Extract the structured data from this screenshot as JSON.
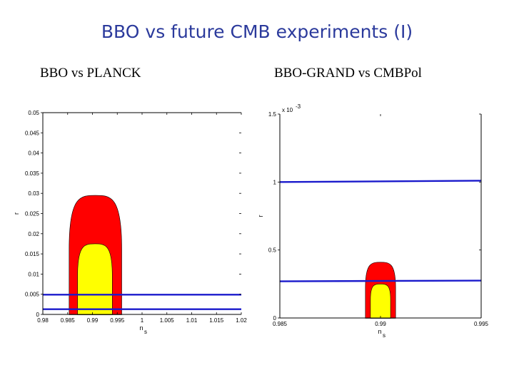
{
  "slide_title": "BBO vs future CMB experiments (I)",
  "chart_data": [
    {
      "type": "area",
      "title": "BBO vs PLANCK",
      "xlabel": "n",
      "xlabel_sub": "s",
      "ylabel": "r",
      "xlim": [
        0.98,
        1.02
      ],
      "ylim": [
        0,
        0.05
      ],
      "xticks": [
        0.98,
        0.985,
        0.99,
        0.995,
        1,
        1.005,
        1.01,
        1.015,
        1.02
      ],
      "xtick_labels": [
        "0.98",
        "0.985",
        "0.99",
        "0.995",
        "1",
        "1.005",
        "1.01",
        "1.015",
        "1.02"
      ],
      "yticks": [
        0,
        0.005,
        0.01,
        0.015,
        0.02,
        0.025,
        0.03,
        0.035,
        0.04,
        0.045,
        0.05
      ],
      "ytick_labels": [
        "0",
        "0.005",
        "0.01",
        "0.015",
        "0.02",
        "0.025",
        "0.03",
        "0.035",
        "0.04",
        "0.045",
        "0.05"
      ],
      "regions": [
        {
          "color": "#ff0000",
          "x_center": 0.9906,
          "x_halfwidth": 0.0053,
          "y_top": 0.0295
        },
        {
          "color": "#ffff00",
          "x_center": 0.9905,
          "x_halfwidth": 0.0035,
          "y_top": 0.0175
        }
      ],
      "lines": [
        {
          "color": "#1a1acc",
          "y_start": 0.0049,
          "y_end": 0.0049
        },
        {
          "color": "#1a1acc",
          "y_start": 0.0013,
          "y_end": 0.0013
        }
      ]
    },
    {
      "type": "area",
      "title": "BBO-GRAND vs CMBPol",
      "xlabel": "n",
      "xlabel_sub": "s",
      "ylabel": "r",
      "y_multiplier": "x 10",
      "y_multiplier_exp": "-3",
      "xlim": [
        0.985,
        0.995
      ],
      "ylim": [
        0,
        1.5
      ],
      "xticks": [
        0.985,
        0.99,
        0.995
      ],
      "xtick_labels": [
        "0.985",
        "0.99",
        "0.995"
      ],
      "yticks": [
        0,
        0.5,
        1,
        1.5
      ],
      "ytick_labels": [
        "0",
        "0.5",
        "1",
        "1.5"
      ],
      "regions": [
        {
          "color": "#ff0000",
          "x_center": 0.99,
          "x_halfwidth": 0.00075,
          "y_top": 0.41
        },
        {
          "color": "#ffff00",
          "x_center": 0.99,
          "x_halfwidth": 0.0005,
          "y_top": 0.25
        }
      ],
      "lines": [
        {
          "color": "#1a1acc",
          "y_start": 1.0,
          "y_end": 1.01
        },
        {
          "color": "#1a1acc",
          "y_start": 0.27,
          "y_end": 0.275
        }
      ]
    }
  ]
}
